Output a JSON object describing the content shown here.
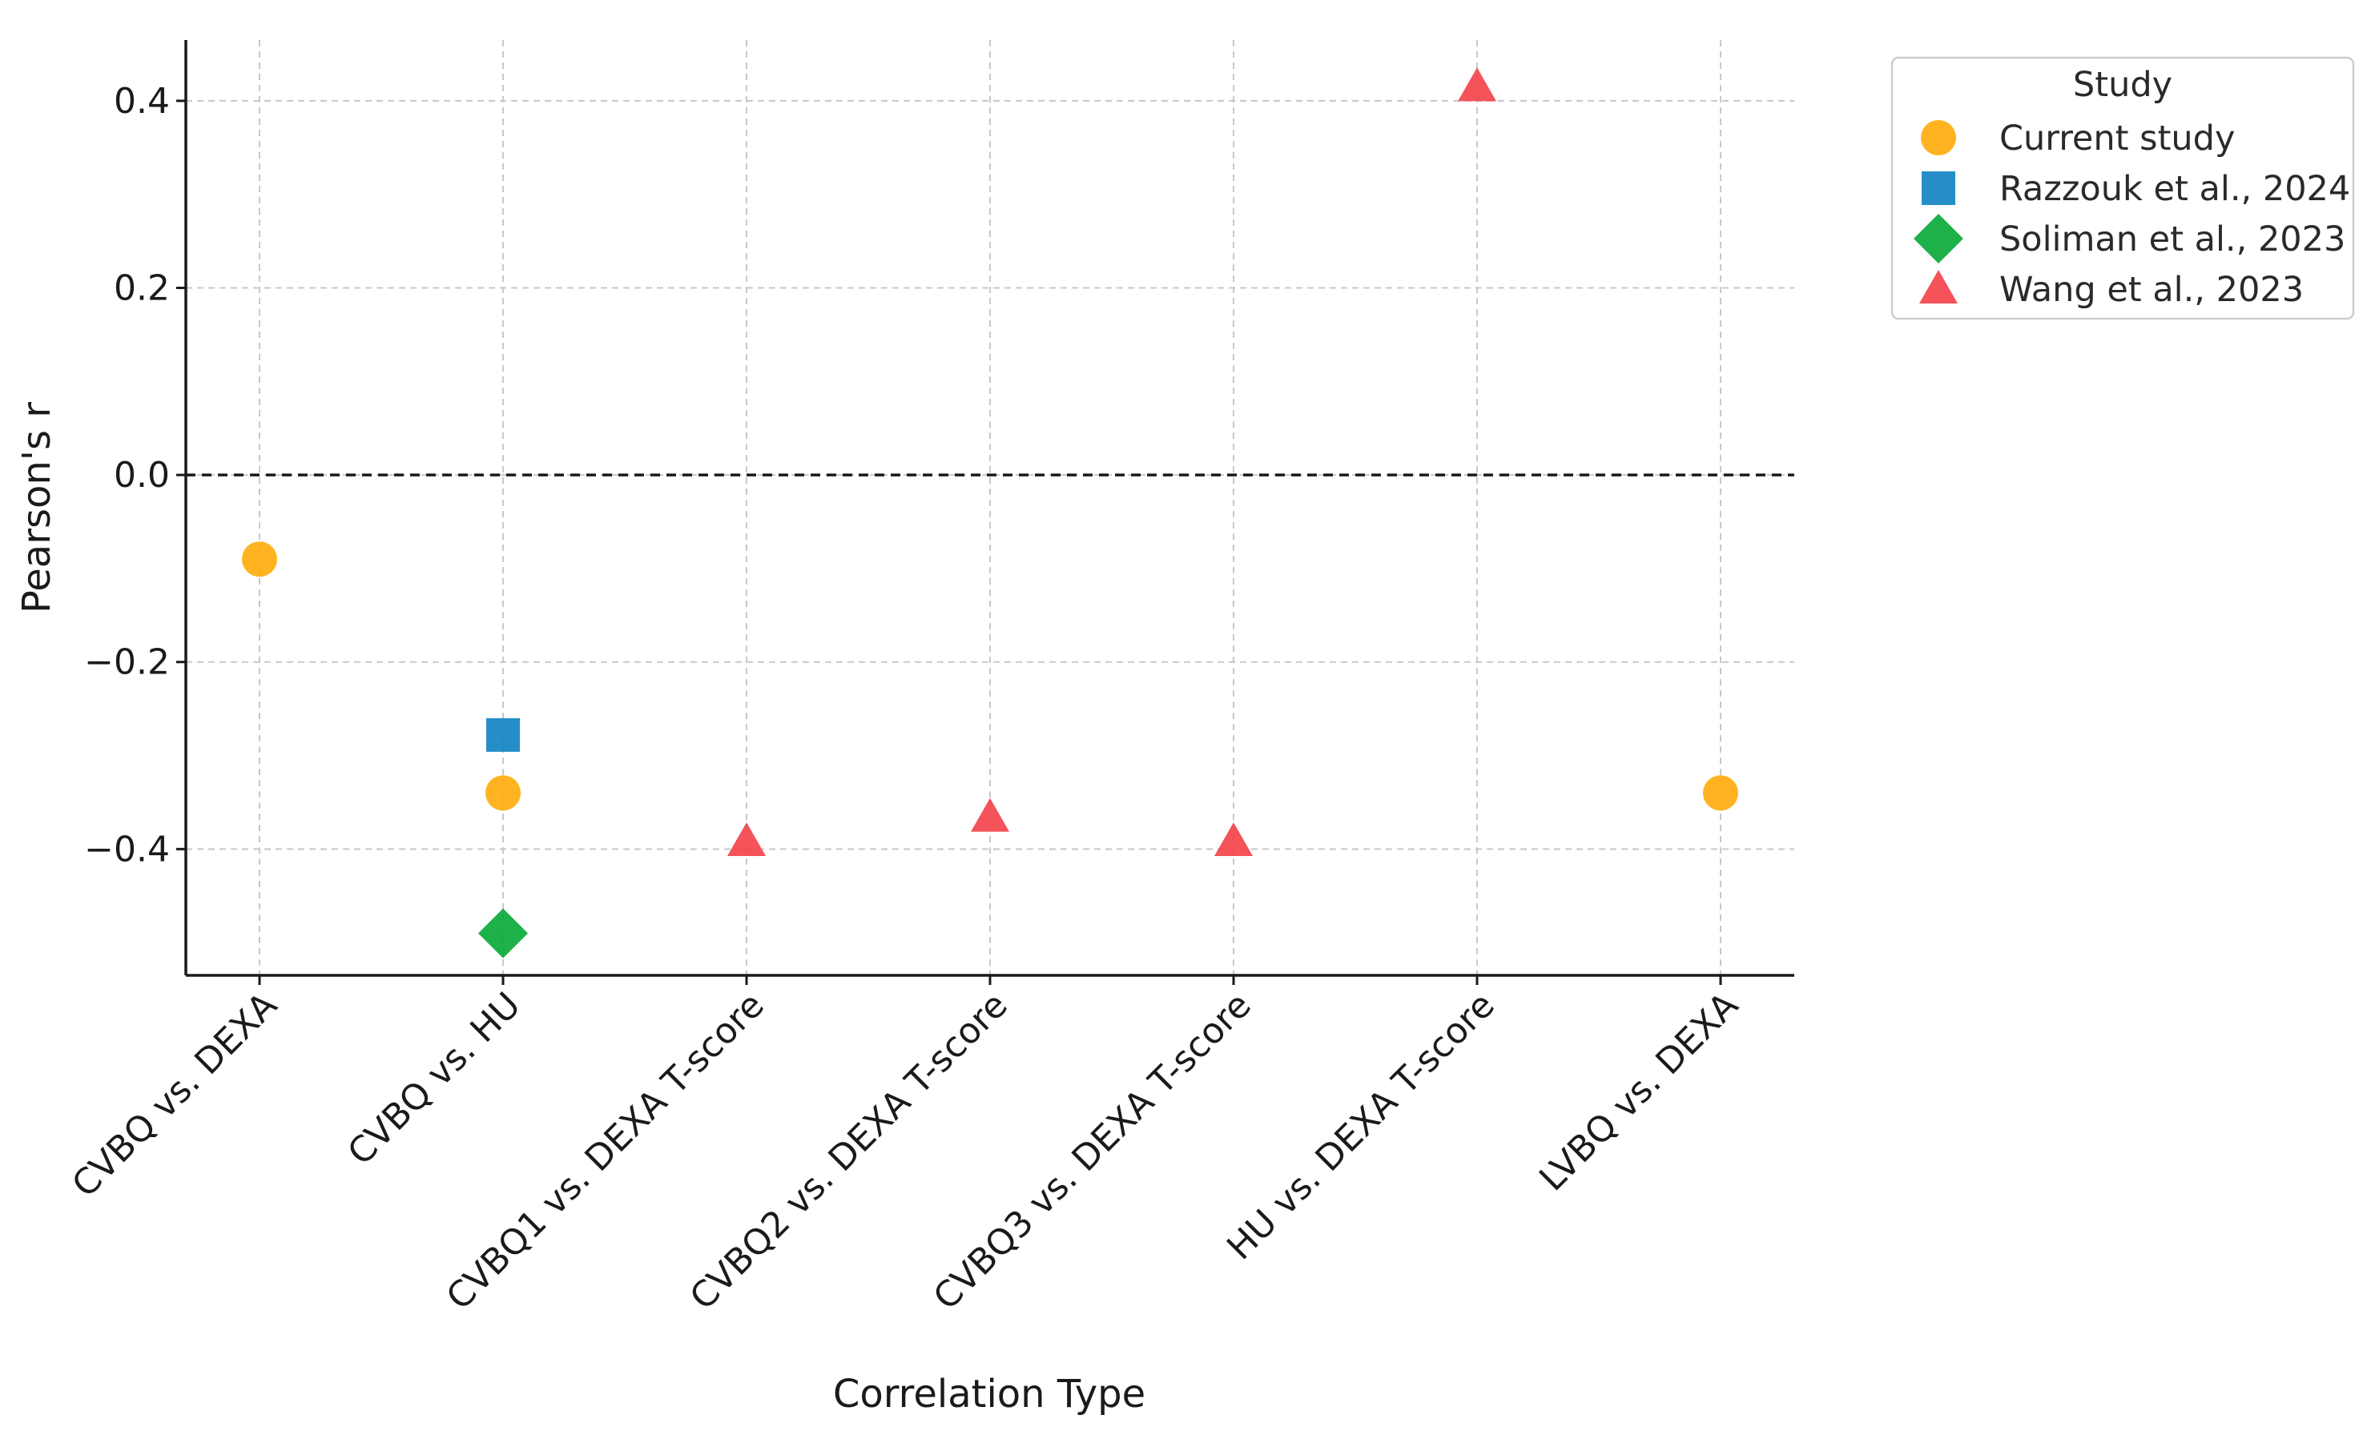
{
  "chart_data": {
    "type": "scatter",
    "title": "",
    "xlabel": "Correlation Type",
    "ylabel": "Pearson's r",
    "categories": [
      "CVBQ vs. DEXA",
      "CVBQ vs. HU",
      "CVBQ1 vs. DEXA T-score",
      "CVBQ2 vs. DEXA T-score",
      "CVBQ3 vs. DEXA T-score",
      "HU vs. DEXA T-score",
      "LVBQ vs. DEXA"
    ],
    "ylim": [
      -0.535,
      0.465
    ],
    "yticks": [
      0.4,
      0.2,
      0.0,
      -0.2,
      -0.4
    ],
    "ytick_labels": [
      "0.4",
      "0.2",
      "0.0",
      "−0.2",
      "−0.4"
    ],
    "zero_line": 0.0,
    "grid": true,
    "legend": {
      "title": "Study",
      "placement": "upper-right-outside"
    },
    "series": [
      {
        "name": "Current study",
        "marker": "circle",
        "color": "#FFAD0D",
        "points": [
          {
            "category": "CVBQ vs. DEXA",
            "value": -0.09
          },
          {
            "category": "CVBQ vs. HU",
            "value": -0.34
          },
          {
            "category": "LVBQ vs. DEXA",
            "value": -0.34
          }
        ]
      },
      {
        "name": "Razzouk et al., 2024",
        "marker": "square",
        "color": "#1284C4",
        "points": [
          {
            "category": "CVBQ vs. HU",
            "value": -0.278
          }
        ]
      },
      {
        "name": "Soliman et al., 2023",
        "marker": "diamond",
        "color": "#0BAA3A",
        "points": [
          {
            "category": "CVBQ vs. HU",
            "value": -0.49
          }
        ]
      },
      {
        "name": "Wang et al., 2023",
        "marker": "triangle",
        "color": "#F2444B",
        "points": [
          {
            "category": "CVBQ1 vs. DEXA T-score",
            "value": -0.392
          },
          {
            "category": "CVBQ2 vs. DEXA T-score",
            "value": -0.366
          },
          {
            "category": "CVBQ3 vs. DEXA T-score",
            "value": -0.392
          },
          {
            "category": "HU vs. DEXA T-score",
            "value": 0.415
          }
        ]
      }
    ]
  }
}
